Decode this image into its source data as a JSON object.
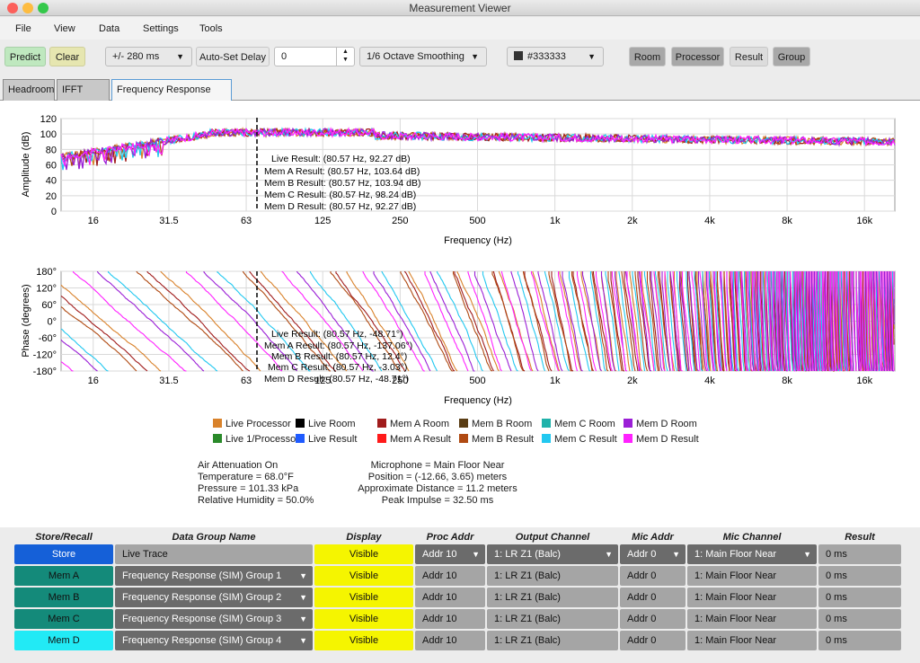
{
  "window": {
    "title": "Measurement Viewer"
  },
  "menu": {
    "items": [
      "File",
      "View",
      "Data",
      "Settings",
      "Tools"
    ]
  },
  "toolbar": {
    "predict": "Predict",
    "clear": "Clear",
    "delay_range": "+/- 280 ms",
    "auto_delay": "Auto-Set Delay",
    "delay_value": "0",
    "smoothing": "1/6 Octave Smoothing",
    "color": "#333333",
    "room": "Room",
    "processor": "Processor",
    "result": "Result",
    "group": "Group"
  },
  "tabs": [
    "Headroom",
    "IFFT (SIM)",
    "Frequency Response (SIM)"
  ],
  "amplitude_plot": {
    "ylabel": "Amplitude (dB)",
    "xlabel": "Frequency (Hz)",
    "y_ticks": [
      "120",
      "100",
      "80",
      "60",
      "40",
      "20",
      "0"
    ],
    "cursor": [
      "Live Result: (80.57 Hz, 92.27 dB)",
      "Mem A Result: (80.57 Hz, 103.64 dB)",
      "Mem B Result: (80.57 Hz, 103.94 dB)",
      "Mem C Result: (80.57 Hz, 98.24 dB)",
      "Mem D Result: (80.57 Hz, 92.27 dB)"
    ]
  },
  "phase_plot": {
    "ylabel": "Phase (degrees)",
    "xlabel": "Frequency (Hz)",
    "y_ticks": [
      "180°",
      "120°",
      "60°",
      "0°",
      "-60°",
      "-120°",
      "-180°"
    ],
    "cursor": [
      "Live Result: (80.57 Hz, -48.71°)",
      "Mem A Result: (80.57 Hz, -137.06°)",
      "Mem B Result: (80.57 Hz, 12.4°)",
      "Mem C Result: (80.57 Hz, -3.03°)",
      "Mem D Result: (80.57 Hz, -48.71°)"
    ]
  },
  "x_ticks": [
    "16",
    "31.5",
    "63",
    "125",
    "250",
    "500",
    "1k",
    "2k",
    "4k",
    "8k",
    "16k"
  ],
  "legend": [
    {
      "label": "Live Processor",
      "color": "#d9822b"
    },
    {
      "label": "Live Room",
      "color": "#000000"
    },
    {
      "label": "Mem A Room",
      "color": "#a01c1c"
    },
    {
      "label": "Mem B Room",
      "color": "#5a3d14"
    },
    {
      "label": "Mem C Room",
      "color": "#20b2aa"
    },
    {
      "label": "Mem D Room",
      "color": "#9b1fd6"
    },
    {
      "label": "Live 1/Processor",
      "color": "#2a8a2a"
    },
    {
      "label": "Live Result",
      "color": "#1f5bff"
    },
    {
      "label": "Mem A Result",
      "color": "#ff1a1a"
    },
    {
      "label": "Mem B Result",
      "color": "#b04a12"
    },
    {
      "label": "Mem C Result",
      "color": "#22c8f0"
    },
    {
      "label": "Mem D Result",
      "color": "#ff22ff"
    }
  ],
  "air": {
    "line1": "Air Attenuation On",
    "line2": "Temperature = 68.0°F",
    "line3": "Pressure = 101.33  kPa",
    "line4": "Relative Humidity = 50.0%"
  },
  "mic": {
    "line1": "Microphone = Main Floor Near",
    "line2": "Position = (-12.66, 3.65) meters",
    "line3": "Approximate Distance = 11.2 meters",
    "line4": "Peak Impulse = 32.50 ms"
  },
  "table": {
    "headers": [
      "Store/Recall",
      "Data Group Name",
      "Display",
      "Proc Addr",
      "Output Channel",
      "Mic Addr",
      "Mic Channel",
      "Result"
    ],
    "rows": [
      {
        "store": "Store",
        "name": "Live Trace",
        "display": "Visible",
        "proc": "Addr 10",
        "out": "1: LR Z1 (Balc)",
        "mic": "Addr 0",
        "micch": "1: Main Floor Near",
        "result": "0 ms",
        "store_color": "#1560d8"
      },
      {
        "store": "Mem A",
        "name": "Frequency Response (SIM) Group 1",
        "display": "Visible",
        "proc": "Addr 10",
        "out": "1: LR Z1 (Balc)",
        "mic": "Addr 0",
        "micch": "1: Main Floor Near",
        "result": "0 ms",
        "store_color": "#148a7a"
      },
      {
        "store": "Mem B",
        "name": "Frequency Response (SIM) Group 2",
        "display": "Visible",
        "proc": "Addr 10",
        "out": "1: LR Z1 (Balc)",
        "mic": "Addr 0",
        "micch": "1: Main Floor Near",
        "result": "0 ms",
        "store_color": "#148a7a"
      },
      {
        "store": "Mem C",
        "name": "Frequency Response (SIM) Group 3",
        "display": "Visible",
        "proc": "Addr 10",
        "out": "1: LR Z1 (Balc)",
        "mic": "Addr 0",
        "micch": "1: Main Floor Near",
        "result": "0 ms",
        "store_color": "#148a7a"
      },
      {
        "store": "Mem D",
        "name": "Frequency Response (SIM) Group 4",
        "display": "Visible",
        "proc": "Addr 10",
        "out": "1: LR Z1 (Balc)",
        "mic": "Addr 0",
        "micch": "1: Main Floor Near",
        "result": "0 ms",
        "store_color": "#22eaf5"
      }
    ]
  }
}
